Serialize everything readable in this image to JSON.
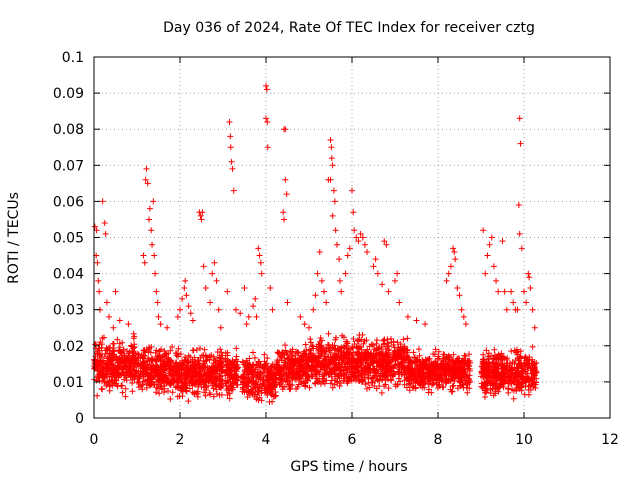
{
  "chart_data": {
    "type": "scatter",
    "title": "Day 036 of 2024, Rate Of TEC Index for receiver cztg",
    "xlabel": "GPS time / hours",
    "ylabel": "ROTI / TECUs",
    "xlim": [
      0,
      12
    ],
    "ylim": [
      0,
      0.1
    ],
    "xticks": [
      0,
      2,
      4,
      6,
      8,
      10,
      12
    ],
    "xtick_labels": [
      "0",
      "2",
      "4",
      "6",
      "8",
      "10",
      "12"
    ],
    "yticks": [
      0,
      0.01,
      0.02,
      0.03,
      0.04,
      0.05,
      0.06,
      0.07,
      0.08,
      0.09,
      0.1
    ],
    "ytick_labels": [
      "0",
      "0.01",
      "0.02",
      "0.03",
      "0.04",
      "0.05",
      "0.06",
      "0.07",
      "0.08",
      "0.09",
      "0.1"
    ],
    "grid": true,
    "marker": "+",
    "color": "#ff0000",
    "series": [
      {
        "name": "ROTI",
        "points": [
          [
            0.02,
            0.053
          ],
          [
            0.05,
            0.045
          ],
          [
            0.06,
            0.052
          ],
          [
            0.08,
            0.043
          ],
          [
            0.1,
            0.038
          ],
          [
            0.12,
            0.035
          ],
          [
            0.14,
            0.03
          ],
          [
            0.2,
            0.06
          ],
          [
            0.25,
            0.054
          ],
          [
            0.27,
            0.051
          ],
          [
            0.3,
            0.032
          ],
          [
            0.35,
            0.028
          ],
          [
            0.45,
            0.025
          ],
          [
            0.5,
            0.035
          ],
          [
            0.6,
            0.027
          ],
          [
            0.8,
            0.026
          ],
          [
            1.15,
            0.045
          ],
          [
            1.18,
            0.043
          ],
          [
            1.2,
            0.066
          ],
          [
            1.22,
            0.069
          ],
          [
            1.25,
            0.065
          ],
          [
            1.28,
            0.055
          ],
          [
            1.3,
            0.058
          ],
          [
            1.33,
            0.052
          ],
          [
            1.35,
            0.048
          ],
          [
            1.38,
            0.06
          ],
          [
            1.4,
            0.045
          ],
          [
            1.42,
            0.04
          ],
          [
            1.45,
            0.035
          ],
          [
            1.48,
            0.032
          ],
          [
            1.5,
            0.028
          ],
          [
            1.55,
            0.026
          ],
          [
            1.7,
            0.025
          ],
          [
            1.95,
            0.028
          ],
          [
            2.0,
            0.03
          ],
          [
            2.05,
            0.033
          ],
          [
            2.1,
            0.036
          ],
          [
            2.12,
            0.038
          ],
          [
            2.15,
            0.034
          ],
          [
            2.2,
            0.031
          ],
          [
            2.25,
            0.029
          ],
          [
            2.3,
            0.027
          ],
          [
            2.45,
            0.057
          ],
          [
            2.48,
            0.056
          ],
          [
            2.5,
            0.055
          ],
          [
            2.52,
            0.057
          ],
          [
            2.55,
            0.042
          ],
          [
            2.6,
            0.036
          ],
          [
            2.7,
            0.032
          ],
          [
            2.75,
            0.04
          ],
          [
            2.8,
            0.043
          ],
          [
            2.85,
            0.038
          ],
          [
            2.9,
            0.03
          ],
          [
            2.95,
            0.025
          ],
          [
            3.1,
            0.035
          ],
          [
            3.15,
            0.082
          ],
          [
            3.17,
            0.078
          ],
          [
            3.18,
            0.075
          ],
          [
            3.2,
            0.071
          ],
          [
            3.22,
            0.069
          ],
          [
            3.25,
            0.063
          ],
          [
            3.3,
            0.03
          ],
          [
            3.4,
            0.029
          ],
          [
            3.5,
            0.036
          ],
          [
            3.55,
            0.026
          ],
          [
            3.6,
            0.028
          ],
          [
            3.7,
            0.031
          ],
          [
            3.75,
            0.033
          ],
          [
            3.78,
            0.028
          ],
          [
            3.82,
            0.047
          ],
          [
            3.85,
            0.045
          ],
          [
            3.88,
            0.043
          ],
          [
            3.9,
            0.04
          ],
          [
            4.0,
            0.092
          ],
          [
            4.02,
            0.091
          ],
          [
            4.0,
            0.083
          ],
          [
            4.03,
            0.082
          ],
          [
            4.04,
            0.075
          ],
          [
            4.1,
            0.036
          ],
          [
            4.15,
            0.03
          ],
          [
            4.42,
            0.08
          ],
          [
            4.45,
            0.08
          ],
          [
            4.45,
            0.066
          ],
          [
            4.48,
            0.062
          ],
          [
            4.4,
            0.057
          ],
          [
            4.42,
            0.055
          ],
          [
            4.5,
            0.032
          ],
          [
            4.8,
            0.028
          ],
          [
            4.9,
            0.026
          ],
          [
            5.0,
            0.025
          ],
          [
            5.1,
            0.03
          ],
          [
            5.15,
            0.034
          ],
          [
            5.2,
            0.04
          ],
          [
            5.25,
            0.046
          ],
          [
            5.3,
            0.038
          ],
          [
            5.35,
            0.035
          ],
          [
            5.4,
            0.032
          ],
          [
            5.45,
            0.066
          ],
          [
            5.5,
            0.077
          ],
          [
            5.52,
            0.075
          ],
          [
            5.53,
            0.072
          ],
          [
            5.55,
            0.07
          ],
          [
            5.5,
            0.066
          ],
          [
            5.58,
            0.063
          ],
          [
            5.6,
            0.06
          ],
          [
            5.55,
            0.056
          ],
          [
            5.62,
            0.052
          ],
          [
            5.65,
            0.048
          ],
          [
            5.7,
            0.044
          ],
          [
            5.72,
            0.038
          ],
          [
            5.75,
            0.035
          ],
          [
            5.85,
            0.04
          ],
          [
            5.9,
            0.045
          ],
          [
            5.95,
            0.047
          ],
          [
            6.0,
            0.063
          ],
          [
            6.03,
            0.057
          ],
          [
            6.05,
            0.052
          ],
          [
            6.1,
            0.05
          ],
          [
            6.15,
            0.049
          ],
          [
            6.2,
            0.051
          ],
          [
            6.25,
            0.05
          ],
          [
            6.3,
            0.048
          ],
          [
            6.35,
            0.046
          ],
          [
            6.5,
            0.042
          ],
          [
            6.55,
            0.044
          ],
          [
            6.6,
            0.04
          ],
          [
            6.7,
            0.037
          ],
          [
            6.75,
            0.049
          ],
          [
            6.8,
            0.048
          ],
          [
            6.85,
            0.035
          ],
          [
            7.0,
            0.038
          ],
          [
            7.05,
            0.04
          ],
          [
            7.1,
            0.032
          ],
          [
            7.3,
            0.028
          ],
          [
            7.5,
            0.027
          ],
          [
            7.7,
            0.026
          ],
          [
            8.2,
            0.038
          ],
          [
            8.25,
            0.04
          ],
          [
            8.3,
            0.042
          ],
          [
            8.35,
            0.047
          ],
          [
            8.38,
            0.046
          ],
          [
            8.4,
            0.044
          ],
          [
            8.45,
            0.036
          ],
          [
            8.5,
            0.034
          ],
          [
            8.55,
            0.03
          ],
          [
            8.6,
            0.028
          ],
          [
            8.65,
            0.026
          ],
          [
            9.05,
            0.052
          ],
          [
            9.1,
            0.04
          ],
          [
            9.15,
            0.045
          ],
          [
            9.2,
            0.048
          ],
          [
            9.25,
            0.05
          ],
          [
            9.3,
            0.042
          ],
          [
            9.35,
            0.038
          ],
          [
            9.4,
            0.035
          ],
          [
            9.5,
            0.049
          ],
          [
            9.55,
            0.035
          ],
          [
            9.6,
            0.03
          ],
          [
            9.7,
            0.035
          ],
          [
            9.75,
            0.032
          ],
          [
            9.8,
            0.03
          ],
          [
            9.85,
            0.03
          ],
          [
            9.9,
            0.083
          ],
          [
            9.92,
            0.076
          ],
          [
            9.88,
            0.059
          ],
          [
            9.9,
            0.051
          ],
          [
            9.95,
            0.047
          ],
          [
            10.0,
            0.035
          ],
          [
            10.05,
            0.032
          ],
          [
            10.1,
            0.04
          ],
          [
            10.12,
            0.039
          ],
          [
            10.15,
            0.036
          ],
          [
            10.2,
            0.03
          ],
          [
            10.25,
            0.025
          ]
        ],
        "dense_segments": [
          {
            "x_range": [
              0.0,
              1.05
            ],
            "y_range": [
              0.005,
              0.024
            ]
          },
          {
            "x_range": [
              1.05,
              1.75
            ],
            "y_range": [
              0.005,
              0.022
            ]
          },
          {
            "x_range": [
              1.75,
              3.0
            ],
            "y_range": [
              0.004,
              0.021
            ]
          },
          {
            "x_range": [
              3.05,
              3.35
            ],
            "y_range": [
              0.004,
              0.02
            ]
          },
          {
            "x_range": [
              3.45,
              4.25
            ],
            "y_range": [
              0.003,
              0.019
            ]
          },
          {
            "x_range": [
              4.25,
              5.0
            ],
            "y_range": [
              0.006,
              0.022
            ]
          },
          {
            "x_range": [
              5.0,
              6.2
            ],
            "y_range": [
              0.006,
              0.025
            ]
          },
          {
            "x_range": [
              6.2,
              7.3
            ],
            "y_range": [
              0.006,
              0.024
            ]
          },
          {
            "x_range": [
              7.3,
              8.1
            ],
            "y_range": [
              0.006,
              0.02
            ]
          },
          {
            "x_range": [
              8.1,
              8.75
            ],
            "y_range": [
              0.006,
              0.02
            ]
          },
          {
            "x_range": [
              9.0,
              10.3
            ],
            "y_range": [
              0.004,
              0.021
            ]
          }
        ]
      }
    ]
  }
}
